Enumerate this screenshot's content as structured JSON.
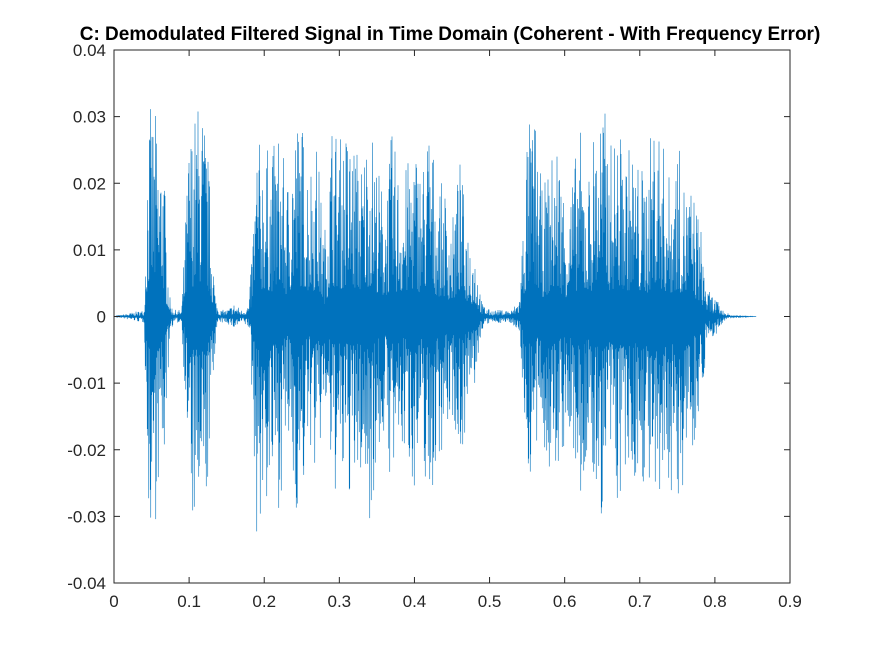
{
  "chart_data": {
    "type": "line",
    "title": "C: Demodulated Filtered Signal in Time Domain (Coherent - With Frequency Error)",
    "xlabel": "",
    "ylabel": "",
    "xlim": [
      0,
      0.9
    ],
    "ylim": [
      -0.04,
      0.04
    ],
    "x_ticks": [
      0,
      0.1,
      0.2,
      0.3,
      0.4,
      0.5,
      0.6,
      0.7,
      0.8,
      0.9
    ],
    "x_tick_labels": [
      "0",
      "0.1",
      "0.2",
      "0.3",
      "0.4",
      "0.5",
      "0.6",
      "0.7",
      "0.8",
      "0.9"
    ],
    "y_ticks": [
      -0.04,
      -0.03,
      -0.02,
      -0.01,
      0,
      0.01,
      0.02,
      0.03,
      0.04
    ],
    "y_tick_labels": [
      "-0.04",
      "-0.03",
      "-0.02",
      "-0.01",
      "0",
      "0.01",
      "0.02",
      "0.03",
      "0.04"
    ],
    "grid": false,
    "legend": "none",
    "line_color": "#0072BD",
    "series": [
      {
        "x": [
          0,
          0.04,
          0.045,
          0.05,
          0.055,
          0.06,
          0.065,
          0.07,
          0.075,
          0.08,
          0.09,
          0.1,
          0.105,
          0.11,
          0.115,
          0.12,
          0.125,
          0.13,
          0.135,
          0.14,
          0.15,
          0.16,
          0.17,
          0.18,
          0.19,
          0.2,
          0.21,
          0.22,
          0.23,
          0.24,
          0.25,
          0.26,
          0.27,
          0.28,
          0.29,
          0.3,
          0.31,
          0.32,
          0.33,
          0.34,
          0.35,
          0.36,
          0.37,
          0.38,
          0.39,
          0.4,
          0.41,
          0.42,
          0.43,
          0.44,
          0.45,
          0.46,
          0.47,
          0.48,
          0.49,
          0.5,
          0.51,
          0.52,
          0.53,
          0.54,
          0.55,
          0.56,
          0.57,
          0.58,
          0.59,
          0.6,
          0.61,
          0.62,
          0.63,
          0.64,
          0.65,
          0.66,
          0.67,
          0.68,
          0.69,
          0.7,
          0.71,
          0.72,
          0.73,
          0.74,
          0.75,
          0.76,
          0.77,
          0.78,
          0.79,
          0.8,
          0.81,
          0.82,
          0.83,
          0.84,
          0.855
        ],
        "envelope_max": [
          0,
          0.001,
          0.03,
          0.032,
          0.031,
          0.025,
          0.029,
          0.012,
          0.002,
          0.001,
          0.001,
          0.028,
          0.03,
          0.032,
          0.034,
          0.031,
          0.025,
          0.015,
          0.003,
          0.001,
          0.001,
          0.002,
          0.001,
          0.002,
          0.027,
          0.026,
          0.025,
          0.029,
          0.02,
          0.031,
          0.03,
          0.024,
          0.027,
          0.012,
          0.031,
          0.027,
          0.029,
          0.027,
          0.024,
          0.031,
          0.024,
          0.018,
          0.028,
          0.022,
          0.023,
          0.027,
          0.023,
          0.031,
          0.02,
          0.02,
          0.014,
          0.024,
          0.015,
          0.011,
          0.002,
          0.001,
          0.001,
          0.001,
          0.001,
          0.003,
          0.029,
          0.031,
          0.019,
          0.023,
          0.028,
          0.019,
          0.021,
          0.029,
          0.02,
          0.03,
          0.034,
          0.026,
          0.029,
          0.026,
          0.026,
          0.023,
          0.023,
          0.033,
          0.027,
          0.021,
          0.027,
          0.02,
          0.02,
          0.015,
          0.004,
          0.003,
          0.001,
          0.0003,
          0.0002,
          0.0001,
          0
        ],
        "envelope_min": [
          0,
          -0.001,
          -0.03,
          -0.033,
          -0.031,
          -0.024,
          -0.026,
          -0.012,
          -0.002,
          -0.001,
          -0.001,
          -0.028,
          -0.033,
          -0.033,
          -0.034,
          -0.033,
          -0.025,
          -0.015,
          -0.003,
          -0.001,
          -0.001,
          -0.002,
          -0.001,
          -0.002,
          -0.034,
          -0.03,
          -0.027,
          -0.029,
          -0.019,
          -0.03,
          -0.029,
          -0.019,
          -0.026,
          -0.013,
          -0.027,
          -0.027,
          -0.027,
          -0.028,
          -0.024,
          -0.031,
          -0.023,
          -0.018,
          -0.027,
          -0.021,
          -0.022,
          -0.026,
          -0.022,
          -0.03,
          -0.022,
          -0.019,
          -0.015,
          -0.022,
          -0.016,
          -0.011,
          -0.002,
          -0.001,
          -0.001,
          -0.001,
          -0.001,
          -0.003,
          -0.025,
          -0.024,
          -0.017,
          -0.027,
          -0.024,
          -0.02,
          -0.021,
          -0.03,
          -0.022,
          -0.028,
          -0.031,
          -0.024,
          -0.029,
          -0.027,
          -0.026,
          -0.025,
          -0.025,
          -0.036,
          -0.029,
          -0.025,
          -0.033,
          -0.022,
          -0.02,
          -0.014,
          -0.004,
          -0.003,
          -0.001,
          -0.0003,
          -0.0002,
          -0.0001,
          0
        ]
      }
    ]
  }
}
